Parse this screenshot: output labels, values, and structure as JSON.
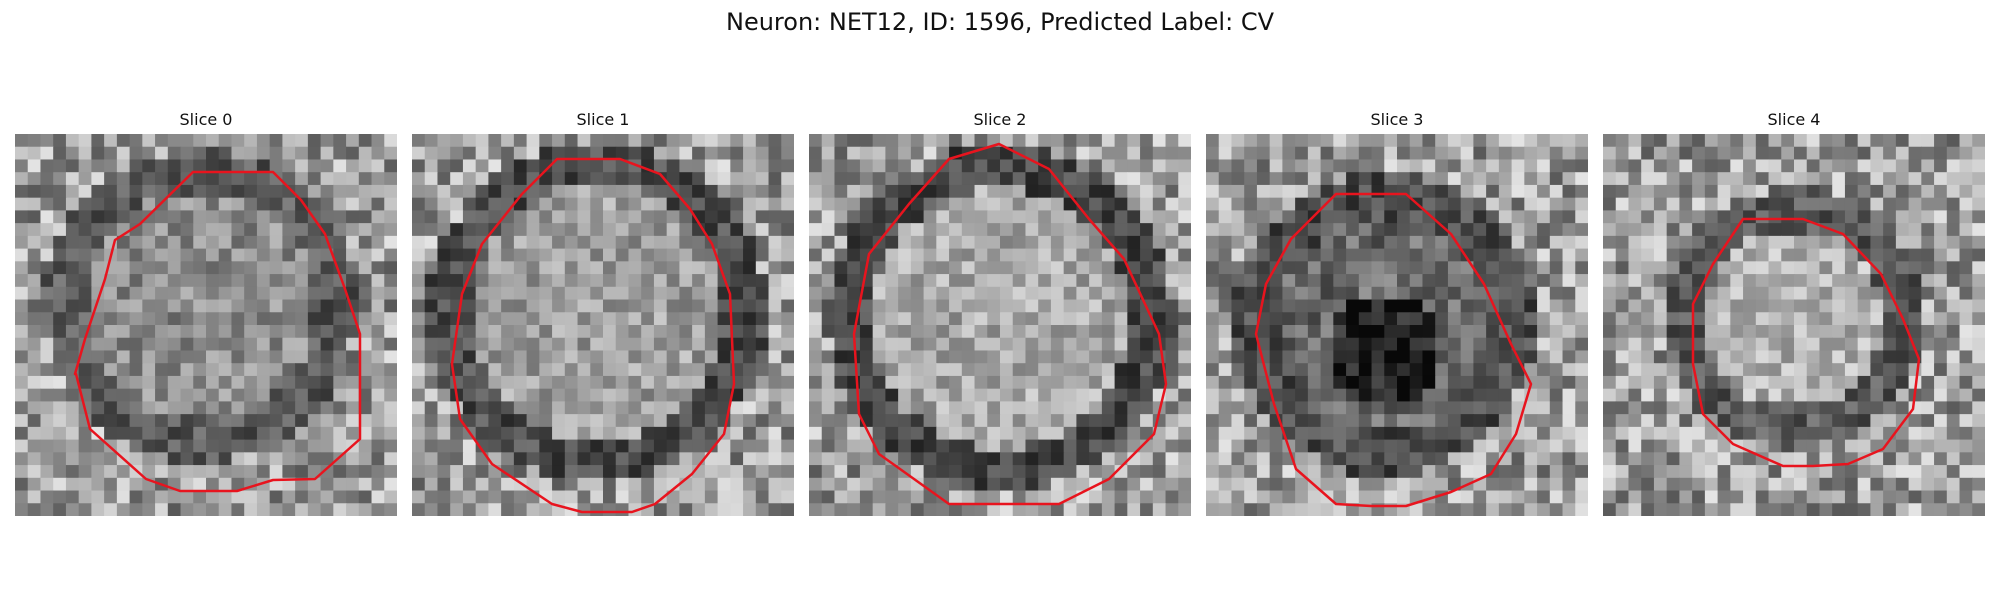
{
  "figure": {
    "title": "Neuron: NET12, ID: 1596, Predicted Label: CV",
    "contour_color": "#e8141e"
  },
  "slices": [
    {
      "label": "Slice 0"
    },
    {
      "label": "Slice 1"
    },
    {
      "label": "Slice 2"
    },
    {
      "label": "Slice 3"
    },
    {
      "label": "Slice 4"
    }
  ]
}
